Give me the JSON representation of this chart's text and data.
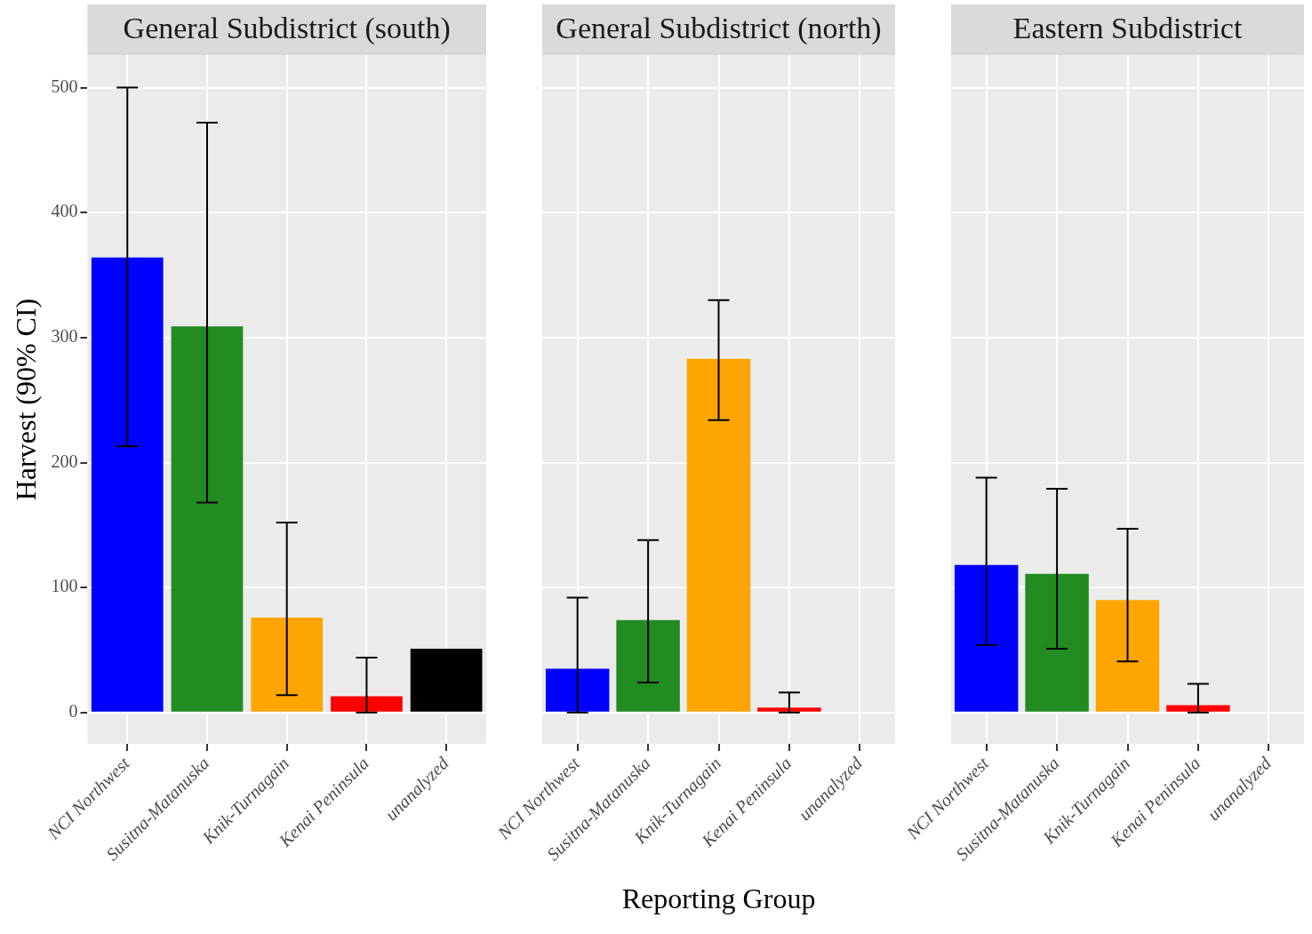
{
  "chart_data": [
    {
      "type": "bar",
      "title": "General Subdistrict (south)",
      "ylabel": "Harvest (90% CI)",
      "categories": [
        "NCI Northwest",
        "Susitna-Matanuska",
        "Knik-Turnagain",
        "Kenai Peninsula",
        "unanalyzed"
      ],
      "colors": [
        "#0000ff",
        "#228b22",
        "#ffa500",
        "#ff0000",
        "#000000"
      ],
      "values": [
        364,
        309,
        76,
        13,
        51
      ],
      "errors": [
        [
          213,
          500
        ],
        [
          168,
          472
        ],
        [
          14,
          152
        ],
        [
          0,
          44
        ],
        null
      ],
      "ylim": [
        -25,
        526
      ],
      "yticks": [
        0,
        100,
        200,
        300,
        400,
        500
      ],
      "grid": true
    },
    {
      "type": "bar",
      "title": "General Subdistrict (north)",
      "xlabel": "Reporting Group",
      "categories": [
        "NCI Northwest",
        "Susitna-Matanuska",
        "Knik-Turnagain",
        "Kenai Peninsula",
        "unanalyzed"
      ],
      "colors": [
        "#0000ff",
        "#228b22",
        "#ffa500",
        "#ff0000",
        "#000000"
      ],
      "values": [
        35,
        74,
        283,
        4,
        null
      ],
      "errors": [
        [
          0,
          92
        ],
        [
          24,
          138
        ],
        [
          234,
          330
        ],
        [
          0,
          16
        ],
        null
      ],
      "ylim": [
        -25,
        526
      ],
      "yticks": [
        0,
        100,
        200,
        300,
        400,
        500
      ],
      "grid": true,
      "tick_labels": "x"
    },
    {
      "type": "bar",
      "title": "Eastern Subdistrict",
      "categories": [
        "NCI Northwest",
        "Susitna-Matanuska",
        "Knik-Turnagain",
        "Kenai Peninsula",
        "unanalyzed"
      ],
      "colors": [
        "#0000ff",
        "#228b22",
        "#ffa500",
        "#ff0000",
        "#000000"
      ],
      "values": [
        118,
        111,
        90,
        6,
        null
      ],
      "errors": [
        [
          54,
          188
        ],
        [
          51,
          179
        ],
        [
          41,
          147
        ],
        [
          0,
          23
        ],
        null
      ],
      "ylim": [
        -25,
        526
      ],
      "yticks": [
        0,
        100,
        200,
        300,
        400,
        500
      ],
      "grid": true,
      "tick_labels": "x"
    }
  ]
}
